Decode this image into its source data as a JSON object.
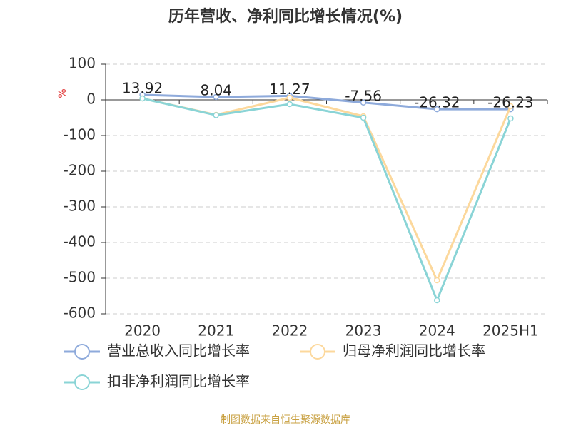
{
  "chart_data": {
    "type": "line",
    "title": "历年营收、净利同比增长情况(%)",
    "y_label": "%",
    "categories": [
      "2020",
      "2021",
      "2022",
      "2023",
      "2024",
      "2025H1"
    ],
    "series": [
      {
        "name": "营业总收入同比增长率",
        "color": "#8eaadb",
        "values": [
          13.92,
          8.04,
          11.27,
          -7.56,
          -26.32,
          -26.23
        ],
        "labels": true
      },
      {
        "name": "归母净利润同比增长率",
        "color": "#fcd89c",
        "values": [
          4,
          -42,
          6,
          -46,
          -506,
          -18
        ]
      },
      {
        "name": "扣非净利润同比增长率",
        "color": "#8ad4d6",
        "values": [
          4,
          -43,
          -12,
          -50,
          -562,
          -52
        ]
      }
    ],
    "ylim": [
      -600,
      100
    ],
    "yticks": [
      100,
      0,
      -100,
      -200,
      -300,
      -400,
      -500,
      -600
    ],
    "grid": true,
    "source": "制图数据来自恒生聚源数据库"
  }
}
